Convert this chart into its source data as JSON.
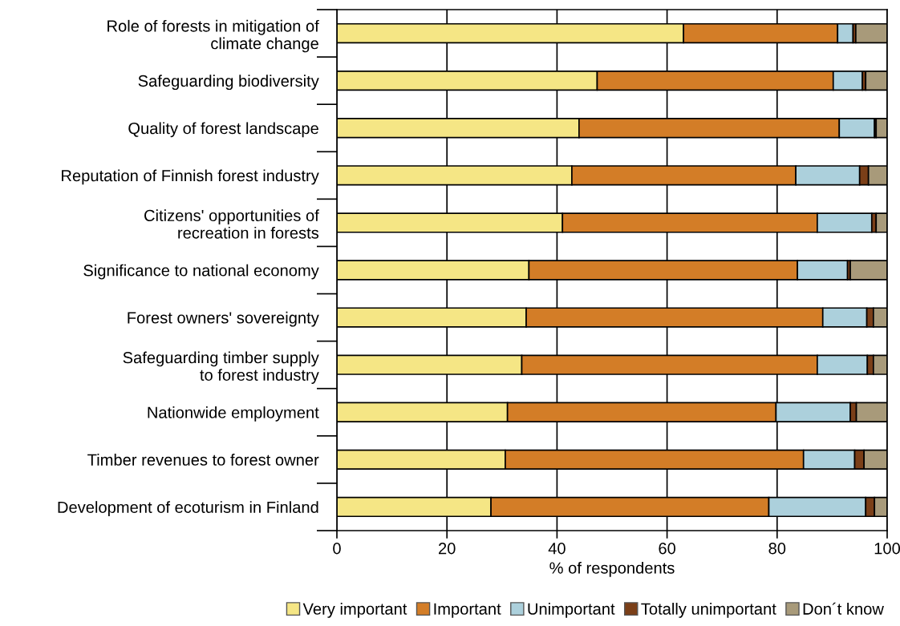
{
  "chart_data": {
    "type": "bar",
    "orientation": "horizontal",
    "stacked": true,
    "categories": [
      "Role of forests in mitigation of\nclimate change",
      "Safeguarding biodiversity",
      "Quality of forest landscape",
      "Reputation of Finnish forest industry",
      "Citizens' opportunities of\nrecreation in forests",
      "Significance to national economy",
      "Forest owners' sovereignty",
      "Safeguarding timber supply\nto forest industry",
      "Nationwide employment",
      "Timber revenues to forest owner",
      "Development of ecoturism in Finland"
    ],
    "series": [
      {
        "name": "Very important",
        "color": "#f5e685",
        "values": [
          63.0,
          47.3,
          44.0,
          42.7,
          41.0,
          34.9,
          34.4,
          33.6,
          31.0,
          30.6,
          28.0
        ]
      },
      {
        "name": "Important",
        "color": "#d37d27",
        "values": [
          28.0,
          42.9,
          47.3,
          40.7,
          46.3,
          48.8,
          53.9,
          53.7,
          48.8,
          54.2,
          50.5
        ]
      },
      {
        "name": "Unimportant",
        "color": "#acd0dc",
        "values": [
          2.8,
          5.3,
          6.4,
          11.6,
          9.9,
          9.1,
          8.0,
          9.1,
          13.5,
          9.3,
          17.6
        ]
      },
      {
        "name": "Totally unimportant",
        "color": "#7b3f18",
        "values": [
          0.5,
          0.6,
          0.3,
          1.6,
          0.8,
          0.5,
          1.2,
          1.1,
          1.1,
          1.7,
          1.6
        ]
      },
      {
        "name": "Don´t know",
        "color": "#a89a7a",
        "values": [
          5.7,
          3.9,
          2.0,
          3.4,
          2.0,
          6.7,
          2.5,
          2.5,
          5.6,
          4.2,
          2.3
        ]
      }
    ],
    "xlabel": "% of respondents",
    "xlim": [
      0,
      100
    ],
    "xticks": [
      0,
      20,
      40,
      60,
      80,
      100
    ],
    "grid": "x",
    "legend": "bottom"
  }
}
